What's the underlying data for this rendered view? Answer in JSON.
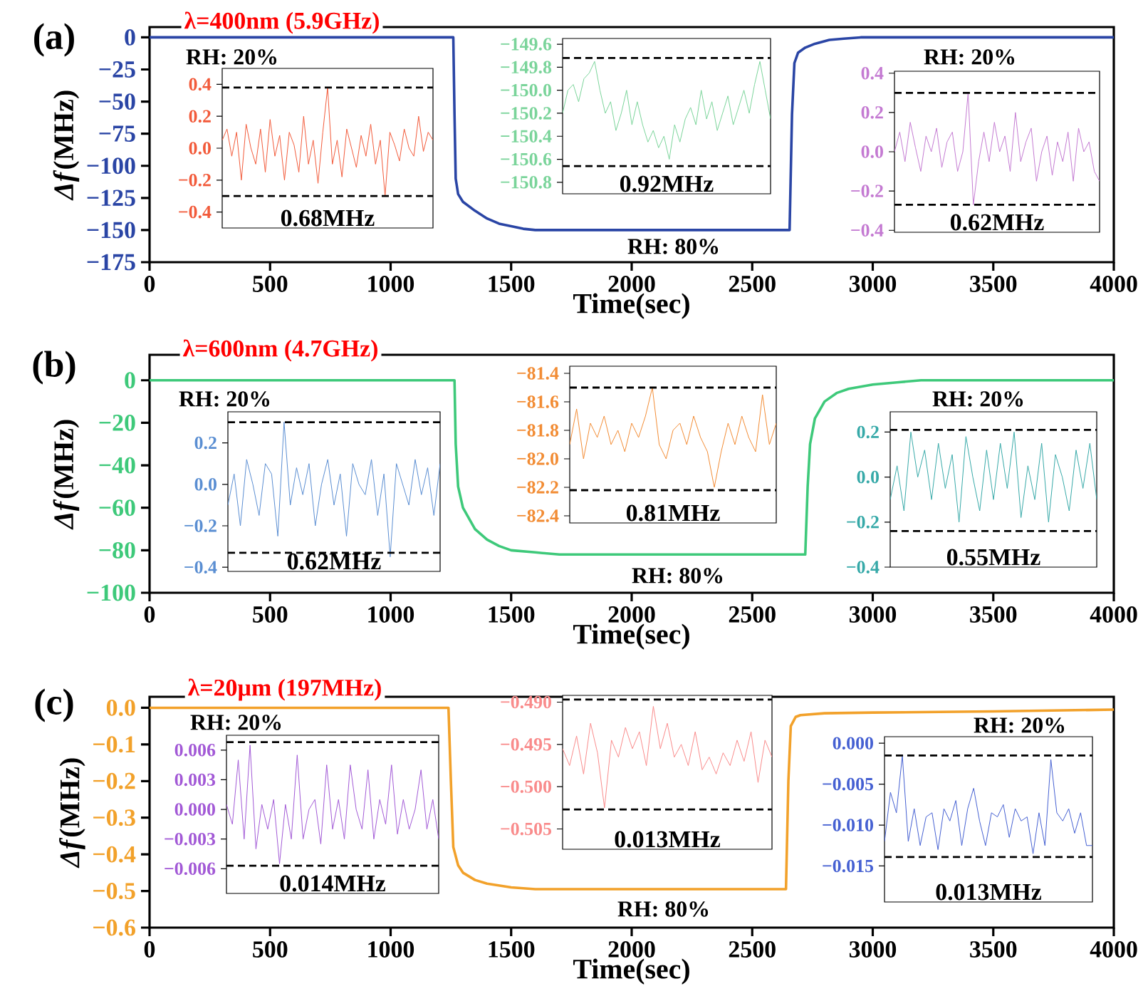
{
  "chart_data": [
    {
      "type": "line",
      "color": "#2a45a5",
      "x": [
        0,
        1260,
        1265,
        1270,
        1280,
        1300,
        1350,
        1400,
        1450,
        1500,
        1550,
        1600,
        1700,
        2655,
        2665,
        2675,
        2690,
        2720,
        2760,
        2820,
        2880,
        2950,
        4000
      ],
      "values": [
        0,
        0,
        -60,
        -110,
        -122,
        -128,
        -135,
        -141,
        -145,
        -147,
        -149,
        -150,
        -150,
        -150,
        -60,
        -20,
        -12,
        -8,
        -5,
        -2,
        -1,
        0,
        0
      ],
      "xlim": [
        0,
        4000
      ],
      "ylim": [
        -175,
        8
      ],
      "xticks": [
        0,
        500,
        1000,
        1500,
        2000,
        2500,
        3000,
        3500,
        4000
      ],
      "yticks": [
        0,
        {
          "value": -25,
          "label": "−25"
        },
        {
          "value": -50,
          "label": "−50"
        },
        {
          "value": -75,
          "label": "−75"
        },
        {
          "value": -100,
          "label": "−100"
        },
        {
          "value": -125,
          "label": "−125"
        },
        {
          "value": -150,
          "label": "−150"
        },
        {
          "value": -175,
          "label": "−175"
        }
      ],
      "xlabel": "Time(sec)",
      "ylabel": "*Δf*(MHz)",
      "annotations": [
        "(a)",
        "λ=400nm (5.9GHz)",
        "RH: 20%",
        "RH: 80%",
        "RH: 20%"
      ]
    },
    {
      "type": "line",
      "color": "#f25a3a",
      "categories": [
        null,
        null,
        null,
        null,
        null,
        null,
        null,
        null,
        null,
        null,
        null,
        null,
        null,
        null,
        null,
        null,
        null,
        null,
        null,
        null,
        null,
        null,
        null,
        null,
        null,
        null,
        null,
        null,
        null,
        null,
        null,
        null,
        null,
        null,
        null,
        null,
        null,
        null,
        null,
        null,
        null,
        null,
        null,
        null,
        null
      ],
      "values": [
        0.05,
        0.12,
        -0.05,
        0.1,
        -0.2,
        0.15,
        0.0,
        -0.1,
        0.12,
        -0.15,
        0.18,
        -0.05,
        0.08,
        -0.2,
        0.1,
        0.02,
        -0.15,
        0.2,
        -0.1,
        0.05,
        -0.22,
        0.1,
        0.38,
        -0.1,
        0.05,
        -0.18,
        0.12,
        0.0,
        -0.12,
        0.08,
        -0.05,
        0.15,
        -0.1,
        0.05,
        -0.3,
        0.1,
        0.02,
        -0.08,
        0.12,
        0.0,
        -0.05,
        0.2,
        -0.02,
        0.1,
        0.05
      ],
      "ylim": [
        -0.5,
        0.5
      ],
      "yticks": [
        0.4,
        0.2,
        {
          "value": 0,
          "label": "0.0"
        },
        {
          "value": -0.2,
          "label": "−0.2"
        },
        {
          "value": -0.4,
          "label": "−0.4"
        }
      ],
      "tick_labels": "y",
      "ref_lines": [
        {
          "axis": "y",
          "value": 0.38,
          "line_style": "dashed",
          "color": "#000000"
        },
        {
          "axis": "y",
          "value": -0.3,
          "line_style": "dashed",
          "color": "#000000"
        }
      ],
      "annotations": [
        "0.68MHz"
      ]
    },
    {
      "type": "line",
      "color": "#7ad49a",
      "categories": [
        null,
        null,
        null,
        null,
        null,
        null,
        null,
        null,
        null,
        null,
        null,
        null,
        null,
        null,
        null,
        null,
        null,
        null,
        null,
        null,
        null,
        null,
        null,
        null,
        null,
        null,
        null,
        null,
        null,
        null,
        null,
        null,
        null,
        null,
        null,
        null,
        null,
        null,
        null,
        null
      ],
      "values": [
        -150.2,
        -150.0,
        -149.95,
        -150.1,
        -149.9,
        -149.85,
        -149.75,
        -150.0,
        -150.2,
        -150.1,
        -150.35,
        -150.2,
        -150.0,
        -150.3,
        -150.1,
        -150.3,
        -150.45,
        -150.35,
        -150.5,
        -150.4,
        -150.6,
        -150.3,
        -150.45,
        -150.25,
        -150.15,
        -150.3,
        -150.0,
        -150.25,
        -150.1,
        -150.35,
        -150.2,
        -150.05,
        -150.3,
        -150.15,
        -150.0,
        -150.2,
        -149.95,
        -149.75,
        -150.0,
        -150.25
      ],
      "ylim": [
        -150.9,
        -149.55
      ],
      "yticks": [
        {
          "value": -149.6,
          "label": "−149.6"
        },
        {
          "value": -149.8,
          "label": "−149.8"
        },
        {
          "value": -150.0,
          "label": "−150.0"
        },
        {
          "value": -150.2,
          "label": "−150.2"
        },
        {
          "value": -150.4,
          "label": "−150.4"
        },
        {
          "value": -150.6,
          "label": "−150.6"
        },
        {
          "value": -150.8,
          "label": "−150.8"
        }
      ],
      "tick_labels": "y",
      "ref_lines": [
        {
          "axis": "y",
          "value": -149.72,
          "line_style": "dashed",
          "color": "#000000"
        },
        {
          "axis": "y",
          "value": -150.66,
          "line_style": "dashed",
          "color": "#000000"
        }
      ],
      "annotations": [
        "0.92MHz"
      ]
    },
    {
      "type": "line",
      "color": "#c47ad2",
      "categories": [
        null,
        null,
        null,
        null,
        null,
        null,
        null,
        null,
        null,
        null,
        null,
        null,
        null,
        null,
        null,
        null,
        null,
        null,
        null,
        null,
        null,
        null,
        null,
        null,
        null,
        null,
        null,
        null,
        null,
        null,
        null,
        null,
        null,
        null,
        null,
        null,
        null,
        null,
        null,
        null
      ],
      "values": [
        0.0,
        0.1,
        -0.05,
        0.15,
        0.02,
        -0.1,
        0.08,
        0.0,
        0.12,
        -0.08,
        0.05,
        0.1,
        -0.1,
        0.0,
        0.3,
        -0.27,
        -0.05,
        0.1,
        -0.05,
        0.15,
        0.0,
        0.08,
        -0.1,
        0.2,
        -0.05,
        0.05,
        0.12,
        -0.15,
        0.0,
        0.08,
        -0.12,
        0.05,
        -0.05,
        0.1,
        -0.15,
        0.12,
        0.0,
        0.05,
        -0.1,
        -0.15
      ],
      "ylim": [
        -0.41,
        0.41
      ],
      "yticks": [
        0.4,
        0.2,
        {
          "value": 0,
          "label": "0.0"
        },
        {
          "value": -0.2,
          "label": "−0.2"
        },
        {
          "value": -0.4,
          "label": "−0.4"
        }
      ],
      "tick_labels": "y",
      "ref_lines": [
        {
          "axis": "y",
          "value": 0.3,
          "line_style": "dashed",
          "color": "#000000"
        },
        {
          "axis": "y",
          "value": -0.27,
          "line_style": "dashed",
          "color": "#000000"
        }
      ],
      "annotations": [
        "0.62MHz"
      ]
    },
    {
      "type": "line",
      "color": "#3ec97a",
      "x": [
        0,
        1265,
        1270,
        1280,
        1300,
        1350,
        1400,
        1450,
        1500,
        1600,
        1700,
        2720,
        2730,
        2740,
        2760,
        2800,
        2850,
        2900,
        3000,
        3100,
        3200,
        4000
      ],
      "values": [
        0,
        0,
        -30,
        -50,
        -60,
        -70,
        -75,
        -78,
        -80,
        -81,
        -82,
        -82,
        -50,
        -30,
        -18,
        -10,
        -6,
        -4,
        -2,
        -1,
        0,
        0
      ],
      "xlim": [
        0,
        4000
      ],
      "ylim": [
        -100,
        12
      ],
      "xticks": [
        0,
        500,
        1000,
        1500,
        2000,
        2500,
        3000,
        3500,
        4000
      ],
      "yticks": [
        0,
        {
          "value": -20,
          "label": "−20"
        },
        {
          "value": -40,
          "label": "−40"
        },
        {
          "value": -60,
          "label": "−60"
        },
        {
          "value": -80,
          "label": "−80"
        },
        {
          "value": -100,
          "label": "−100"
        }
      ],
      "xlabel": "Time(sec)",
      "ylabel": "*Δf*(MHz)",
      "annotations": [
        "(b)",
        "λ=600nm (4.7GHz)",
        "RH: 20%",
        "RH: 80%",
        "RH: 20%"
      ]
    },
    {
      "type": "line",
      "color": "#5a8ed2",
      "categories": [
        null,
        null,
        null,
        null,
        null,
        null,
        null,
        null,
        null,
        null,
        null,
        null,
        null,
        null,
        null,
        null,
        null,
        null,
        null,
        null,
        null,
        null,
        null,
        null,
        null,
        null,
        null,
        null,
        null,
        null,
        null,
        null,
        null,
        null,
        null
      ],
      "values": [
        -0.1,
        0.05,
        -0.2,
        0.12,
        0.0,
        -0.15,
        0.1,
        0.05,
        -0.25,
        0.3,
        -0.1,
        0.08,
        -0.05,
        0.1,
        -0.2,
        0.0,
        0.12,
        -0.1,
        0.05,
        -0.25,
        0.1,
        0.0,
        -0.05,
        0.12,
        -0.15,
        0.05,
        -0.35,
        0.1,
        0.0,
        -0.1,
        0.12,
        -0.05,
        0.08,
        -0.15,
        0.1
      ],
      "ylim": [
        -0.42,
        0.35
      ],
      "yticks": [
        0.2,
        {
          "value": 0,
          "label": "0.0"
        },
        {
          "value": -0.2,
          "label": "−0.2"
        },
        {
          "value": -0.4,
          "label": "−0.4"
        }
      ],
      "tick_labels": "y",
      "ref_lines": [
        {
          "axis": "y",
          "value": 0.3,
          "line_style": "dashed",
          "color": "#000000"
        },
        {
          "axis": "y",
          "value": -0.33,
          "line_style": "dashed",
          "color": "#000000"
        }
      ],
      "annotations": [
        "0.62MHz"
      ]
    },
    {
      "type": "line",
      "color": "#f28c34",
      "categories": [
        null,
        null,
        null,
        null,
        null,
        null,
        null,
        null,
        null,
        null,
        null,
        null,
        null,
        null,
        null,
        null,
        null,
        null,
        null,
        null,
        null,
        null,
        null,
        null,
        null,
        null,
        null,
        null,
        null,
        null,
        null
      ],
      "values": [
        -81.9,
        -81.65,
        -82.0,
        -81.75,
        -81.85,
        -81.7,
        -81.9,
        -81.8,
        -81.95,
        -81.75,
        -81.85,
        -81.7,
        -81.5,
        -81.9,
        -82.0,
        -81.8,
        -81.75,
        -81.9,
        -81.7,
        -81.85,
        -81.95,
        -82.2,
        -81.95,
        -81.75,
        -81.9,
        -81.7,
        -81.85,
        -81.95,
        -81.55,
        -81.9,
        -81.75
      ],
      "ylim": [
        -82.45,
        -81.35
      ],
      "yticks": [
        {
          "value": -81.4,
          "label": "−81.4"
        },
        {
          "value": -81.6,
          "label": "−81.6"
        },
        {
          "value": -81.8,
          "label": "−81.8"
        },
        {
          "value": -82.0,
          "label": "−82.0"
        },
        {
          "value": -82.2,
          "label": "−82.2"
        },
        {
          "value": -82.4,
          "label": "−82.4"
        }
      ],
      "tick_labels": "y",
      "ref_lines": [
        {
          "axis": "y",
          "value": -81.5,
          "line_style": "dashed",
          "color": "#000000"
        },
        {
          "axis": "y",
          "value": -82.22,
          "line_style": "dashed",
          "color": "#000000"
        }
      ],
      "annotations": [
        "0.81MHz"
      ]
    },
    {
      "type": "line",
      "color": "#36a9a8",
      "categories": [
        null,
        null,
        null,
        null,
        null,
        null,
        null,
        null,
        null,
        null,
        null,
        null,
        null,
        null,
        null,
        null,
        null,
        null,
        null,
        null,
        null,
        null,
        null,
        null,
        null,
        null,
        null,
        null,
        null,
        null,
        null
      ],
      "values": [
        -0.1,
        0.05,
        -0.15,
        0.2,
        0.0,
        0.12,
        -0.1,
        0.15,
        -0.05,
        0.1,
        -0.2,
        0.18,
        0.0,
        -0.15,
        0.12,
        -0.1,
        0.15,
        -0.05,
        0.2,
        -0.18,
        0.05,
        -0.1,
        0.15,
        -0.2,
        0.1,
        0.0,
        -0.15,
        0.12,
        -0.05,
        0.15,
        -0.1
      ],
      "ylim": [
        -0.4,
        0.29
      ],
      "yticks": [
        0.2,
        {
          "value": 0,
          "label": "0.0"
        },
        {
          "value": -0.2,
          "label": "−0.2"
        },
        {
          "value": -0.4,
          "label": "−0.4"
        }
      ],
      "tick_labels": "y",
      "ref_lines": [
        {
          "axis": "y",
          "value": 0.21,
          "line_style": "dashed",
          "color": "#000000"
        },
        {
          "axis": "y",
          "value": -0.24,
          "line_style": "dashed",
          "color": "#000000"
        }
      ],
      "annotations": [
        "0.55MHz"
      ]
    },
    {
      "type": "line",
      "color": "#f2a12a",
      "x": [
        0,
        1240,
        1250,
        1260,
        1280,
        1300,
        1350,
        1400,
        1500,
        1600,
        1800,
        2640,
        2650,
        2660,
        2680,
        2700,
        2800,
        3000,
        3500,
        4000
      ],
      "values": [
        0,
        0,
        -0.2,
        -0.38,
        -0.43,
        -0.45,
        -0.47,
        -0.48,
        -0.49,
        -0.495,
        -0.495,
        -0.495,
        -0.2,
        -0.05,
        -0.025,
        -0.02,
        -0.015,
        -0.013,
        -0.01,
        -0.005
      ],
      "xlim": [
        0,
        4000
      ],
      "ylim": [
        -0.6,
        0.03
      ],
      "xticks": [
        0,
        500,
        1000,
        1500,
        2000,
        2500,
        3000,
        3500,
        4000
      ],
      "yticks": [
        {
          "value": 0,
          "label": "0.0"
        },
        {
          "value": -0.1,
          "label": "−0.1"
        },
        {
          "value": -0.2,
          "label": "−0.2"
        },
        {
          "value": -0.3,
          "label": "−0.3"
        },
        {
          "value": -0.4,
          "label": "−0.4"
        },
        {
          "value": -0.5,
          "label": "−0.5"
        },
        {
          "value": -0.6,
          "label": "−0.6"
        }
      ],
      "xlabel": "Time(sec)",
      "ylabel": "*Δf*(MHz)",
      "annotations": [
        "(c)",
        "λ=20µm (197MHz)",
        "RH: 20%",
        "RH: 80%",
        "RH: 20%"
      ]
    },
    {
      "type": "line",
      "color": "#a259d6",
      "categories": [
        null,
        null,
        null,
        null,
        null,
        null,
        null,
        null,
        null,
        null,
        null,
        null,
        null,
        null,
        null,
        null,
        null,
        null,
        null,
        null,
        null,
        null,
        null,
        null,
        null,
        null,
        null,
        null,
        null,
        null,
        null,
        null,
        null,
        null,
        null,
        null,
        null
      ],
      "values": [
        0.0005,
        -0.0015,
        0.005,
        -0.003,
        0.0065,
        -0.004,
        0.0005,
        -0.002,
        0.001,
        -0.0055,
        0.0005,
        -0.003,
        0.0055,
        -0.003,
        0.0,
        0.001,
        -0.0035,
        0.0045,
        -0.002,
        0.001,
        -0.003,
        0.0045,
        0.0,
        -0.002,
        0.004,
        -0.003,
        0.001,
        -0.0015,
        0.0045,
        -0.0025,
        0.001,
        -0.002,
        0.0,
        0.004,
        -0.002,
        0.001,
        -0.003
      ],
      "ylim": [
        -0.0085,
        0.0075
      ],
      "yticks": [
        {
          "value": 0.006,
          "label": "0.006"
        },
        {
          "value": 0.003,
          "label": "0.003"
        },
        {
          "value": 0,
          "label": "0.000"
        },
        {
          "value": -0.003,
          "label": "−0.003"
        },
        {
          "value": -0.006,
          "label": "−0.006"
        }
      ],
      "tick_labels": "y",
      "ref_lines": [
        {
          "axis": "y",
          "value": 0.0068,
          "line_style": "dashed",
          "color": "#000000"
        },
        {
          "axis": "y",
          "value": -0.0057,
          "line_style": "dashed",
          "color": "#000000"
        }
      ],
      "annotations": [
        "0.014MHz"
      ]
    },
    {
      "type": "line",
      "color": "#f98b8b",
      "categories": [
        null,
        null,
        null,
        null,
        null,
        null,
        null,
        null,
        null,
        null,
        null,
        null,
        null,
        null,
        null,
        null,
        null,
        null,
        null,
        null,
        null,
        null,
        null,
        null,
        null,
        null,
        null,
        null,
        null,
        null,
        null
      ],
      "values": [
        -0.4955,
        -0.4975,
        -0.494,
        -0.4985,
        -0.4925,
        -0.496,
        -0.5025,
        -0.4945,
        -0.4965,
        -0.493,
        -0.4955,
        -0.4935,
        -0.4975,
        -0.4905,
        -0.4955,
        -0.4925,
        -0.4965,
        -0.495,
        -0.4975,
        -0.4935,
        -0.498,
        -0.4965,
        -0.4985,
        -0.496,
        -0.4975,
        -0.4945,
        -0.497,
        -0.4935,
        -0.4995,
        -0.4945,
        -0.4965
      ],
      "ylim": [
        -0.5074,
        -0.4892
      ],
      "yticks": [
        {
          "value": -0.49,
          "label": "−0.490"
        },
        {
          "value": -0.495,
          "label": "−0.495"
        },
        {
          "value": -0.5,
          "label": "−0.500"
        },
        {
          "value": -0.505,
          "label": "−0.505"
        }
      ],
      "tick_labels": "y",
      "ref_lines": [
        {
          "axis": "y",
          "value": -0.4897,
          "line_style": "dashed",
          "color": "#000000"
        },
        {
          "axis": "y",
          "value": -0.5027,
          "line_style": "dashed",
          "color": "#000000"
        }
      ],
      "annotations": [
        "0.013MHz"
      ]
    },
    {
      "type": "line",
      "color": "#4560d2",
      "categories": [
        null,
        null,
        null,
        null,
        null,
        null,
        null,
        null,
        null,
        null,
        null,
        null,
        null,
        null,
        null,
        null,
        null,
        null,
        null,
        null,
        null,
        null,
        null,
        null,
        null,
        null,
        null,
        null,
        null,
        null,
        null,
        null,
        null,
        null,
        null,
        null
      ],
      "values": [
        -0.012,
        -0.006,
        -0.0085,
        -0.0015,
        -0.012,
        -0.008,
        -0.0125,
        -0.009,
        -0.0085,
        -0.013,
        -0.008,
        -0.0095,
        -0.007,
        -0.0125,
        -0.008,
        -0.0055,
        -0.0095,
        -0.0125,
        -0.0085,
        -0.009,
        -0.0075,
        -0.0115,
        -0.008,
        -0.0095,
        -0.009,
        -0.0135,
        -0.0085,
        -0.0125,
        -0.002,
        -0.0085,
        -0.0095,
        -0.008,
        -0.011,
        -0.0085,
        -0.0125,
        -0.0125
      ],
      "ylim": [
        -0.0194,
        0.0008
      ],
      "yticks": [
        {
          "value": 0,
          "label": "0.000"
        },
        {
          "value": -0.005,
          "label": "−0.005"
        },
        {
          "value": -0.01,
          "label": "−0.010"
        },
        {
          "value": -0.015,
          "label": "−0.015"
        }
      ],
      "tick_labels": "y",
      "ref_lines": [
        {
          "axis": "y",
          "value": -0.0015,
          "line_style": "dashed",
          "color": "#000000"
        },
        {
          "axis": "y",
          "value": -0.0139,
          "line_style": "dashed",
          "color": "#000000"
        }
      ],
      "annotations": [
        "0.013MHz"
      ]
    }
  ]
}
